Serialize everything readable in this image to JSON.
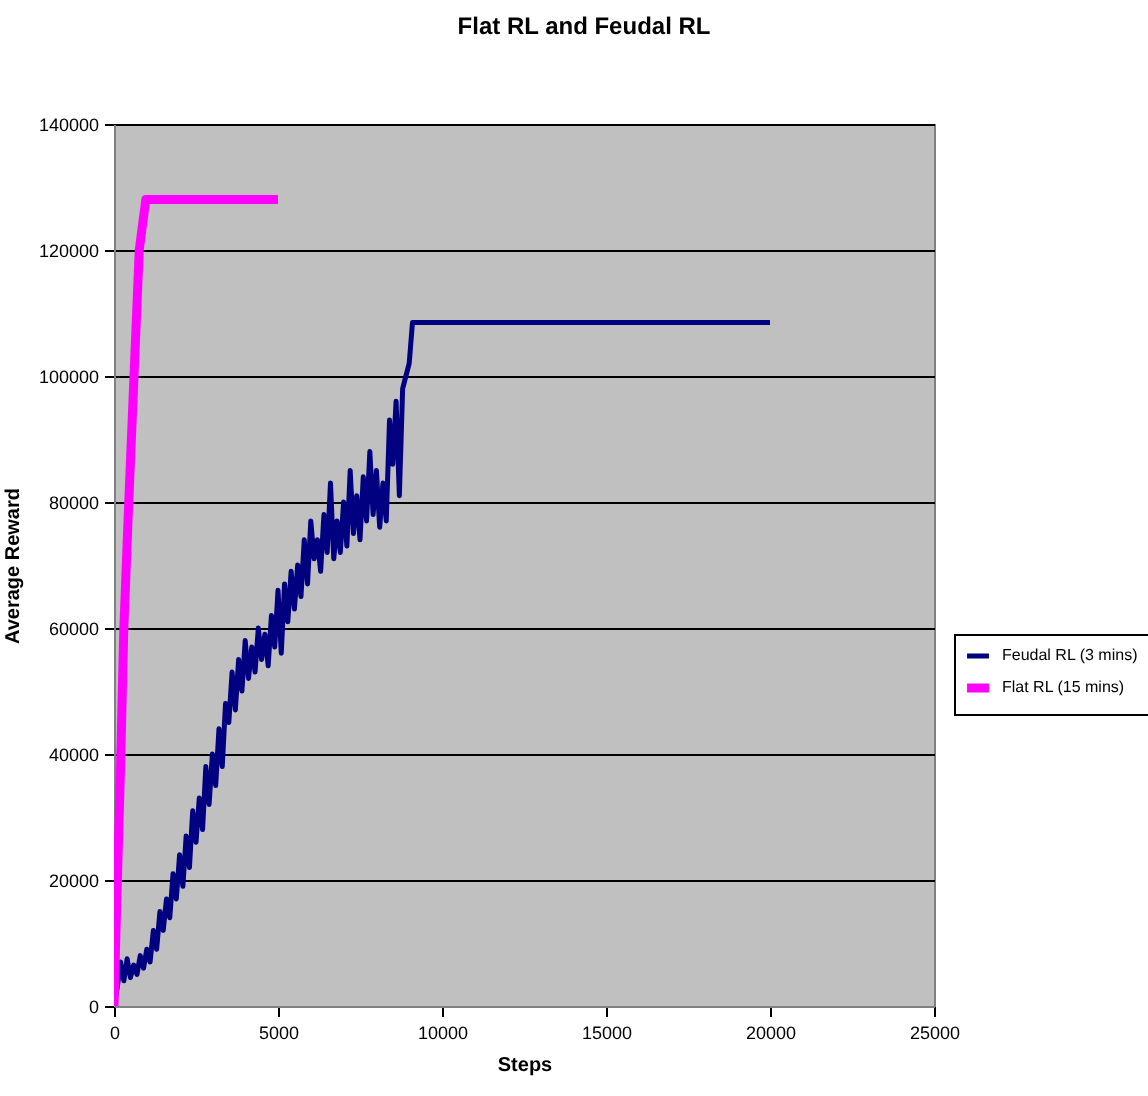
{
  "chart_data": {
    "type": "line",
    "title": "Flat RL and Feudal RL",
    "xlabel": "Steps",
    "ylabel": "Average Reward",
    "xlim": [
      0,
      25000
    ],
    "xticks": [
      0,
      5000,
      10000,
      15000,
      20000,
      25000
    ],
    "ylim": [
      0,
      140000
    ],
    "yticks": [
      0,
      20000,
      40000,
      60000,
      80000,
      100000,
      120000,
      140000
    ],
    "grid": "y",
    "legend": "right",
    "marker": "none",
    "line_style": "solid",
    "series": [
      {
        "name": "Feudal RL (3 mins)",
        "color": "#000080",
        "x": [
          0,
          100,
          200,
          300,
          400,
          500,
          600,
          700,
          800,
          900,
          1000,
          1100,
          1200,
          1300,
          1400,
          1500,
          1600,
          1700,
          1800,
          1900,
          2000,
          2100,
          2200,
          2300,
          2400,
          2500,
          2600,
          2700,
          2800,
          2900,
          3000,
          3100,
          3200,
          3300,
          3400,
          3500,
          3600,
          3700,
          3800,
          3900,
          4000,
          4100,
          4200,
          4300,
          4400,
          4500,
          4600,
          4700,
          4800,
          4900,
          5000,
          5100,
          5200,
          5300,
          5400,
          5500,
          5600,
          5700,
          5800,
          5900,
          6000,
          6100,
          6200,
          6300,
          6400,
          6500,
          6600,
          6700,
          6800,
          6900,
          7000,
          7100,
          7200,
          7300,
          7400,
          7500,
          7600,
          7700,
          7800,
          7900,
          8000,
          8100,
          8200,
          8300,
          8400,
          8500,
          8600,
          8700,
          8800,
          8900,
          9000,
          9100,
          20000
        ],
        "values": [
          0,
          3000,
          7000,
          4000,
          7500,
          4500,
          6500,
          5000,
          8000,
          6000,
          9000,
          7000,
          12000,
          9000,
          15000,
          12000,
          17000,
          14000,
          21000,
          17000,
          24000,
          19000,
          27000,
          22000,
          31000,
          26000,
          33000,
          28000,
          38000,
          32000,
          40000,
          35000,
          44000,
          38000,
          48000,
          45000,
          53000,
          47000,
          55000,
          50000,
          58000,
          52000,
          57000,
          53000,
          60000,
          55000,
          59000,
          54000,
          62000,
          57000,
          66000,
          56000,
          67000,
          61000,
          69000,
          63000,
          70000,
          65000,
          74000,
          67000,
          77000,
          71000,
          74000,
          69000,
          78000,
          72000,
          83000,
          71000,
          77000,
          72000,
          80000,
          73000,
          85000,
          75000,
          81000,
          74000,
          84000,
          77000,
          88000,
          78000,
          85000,
          76000,
          83000,
          77000,
          93000,
          86000,
          96000,
          81000,
          98000,
          100000,
          102000,
          108500,
          108500
        ]
      },
      {
        "name": "Flat RL (15 mins)",
        "color": "#ff00ff",
        "x": [
          0,
          50,
          200,
          300,
          450,
          610,
          770,
          970,
          5000
        ],
        "values": [
          0,
          10000,
          38000,
          60000,
          80000,
          100000,
          120000,
          128000,
          128000
        ]
      }
    ]
  }
}
